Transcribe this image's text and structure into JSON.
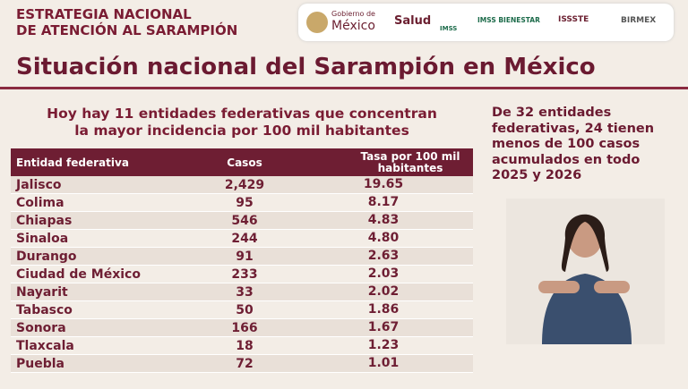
{
  "header": {
    "title_lines": [
      "ESTRATEGIA NACIONAL",
      "DE ATENCIÓN AL SARAMPIÓN"
    ],
    "logos": [
      "Gobierno de",
      "México",
      "Salud",
      "IMSS",
      "IMSS BIENESTAR",
      "ISSSTE",
      "BIRMEX"
    ]
  },
  "main_title": "Situación nacional del Sarampión en México",
  "subtitle_lines": [
    "Hoy hay 11 entidades federativas que concentran",
    "la mayor incidencia por 100 mil habitantes"
  ],
  "table": {
    "headers": [
      "Entidad federativa",
      "Casos",
      "Tasa por 100 mil habitantes"
    ],
    "rows": [
      [
        "Jalisco",
        "2,429",
        "19.65"
      ],
      [
        "Colima",
        "95",
        "8.17"
      ],
      [
        "Chiapas",
        "546",
        "4.83"
      ],
      [
        "Sinaloa",
        "244",
        "4.80"
      ],
      [
        "Durango",
        "91",
        "2.63"
      ],
      [
        "Ciudad de México",
        "233",
        "2.03"
      ],
      [
        "Nayarit",
        "33",
        "2.02"
      ],
      [
        "Tabasco",
        "50",
        "1.86"
      ],
      [
        "Sonora",
        "166",
        "1.67"
      ],
      [
        "Tlaxcala",
        "18",
        "1.23"
      ],
      [
        "Puebla",
        "72",
        "1.01"
      ]
    ]
  },
  "side_note_lines": [
    "De 32 entidades",
    "federativas, 24 tienen",
    "menos de 100 casos",
    "acumulados en todo",
    "2025 y 2026"
  ]
}
